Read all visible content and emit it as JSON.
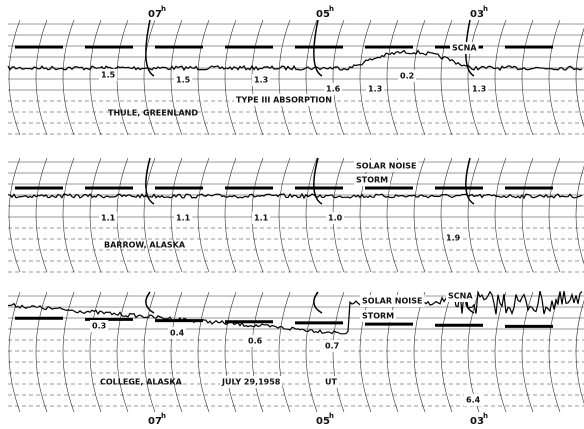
{
  "time_marks": {
    "top": [
      {
        "hour": "07",
        "unit": "h"
      },
      {
        "hour": "05",
        "unit": "h"
      },
      {
        "hour": "03",
        "unit": "h"
      }
    ],
    "bottom": [
      {
        "hour": "07",
        "unit": "h"
      },
      {
        "hour": "05",
        "unit": "h"
      },
      {
        "hour": "03",
        "unit": "h"
      }
    ]
  },
  "panels": [
    {
      "station": "THULE, GREENLAND",
      "labels": [
        "1.5",
        "1.5",
        "1.3",
        "1.6",
        "1.3",
        "0.2",
        "SCNA",
        "1.3",
        "TYPE III ABSORPTION"
      ]
    },
    {
      "station": "BARROW, ALASKA",
      "labels": [
        "SOLAR NOISE",
        "STORM",
        "1.1",
        "1.1",
        "1.1",
        "1.0",
        "1.9"
      ]
    },
    {
      "station": "COLLEGE, ALASKA",
      "labels": [
        "SOLAR NOISE",
        "STORM",
        "SCNA",
        "0.3",
        "0.4",
        "0.6",
        "0.7",
        "6.4",
        "JULY 29,1958",
        "UT"
      ]
    }
  ]
}
